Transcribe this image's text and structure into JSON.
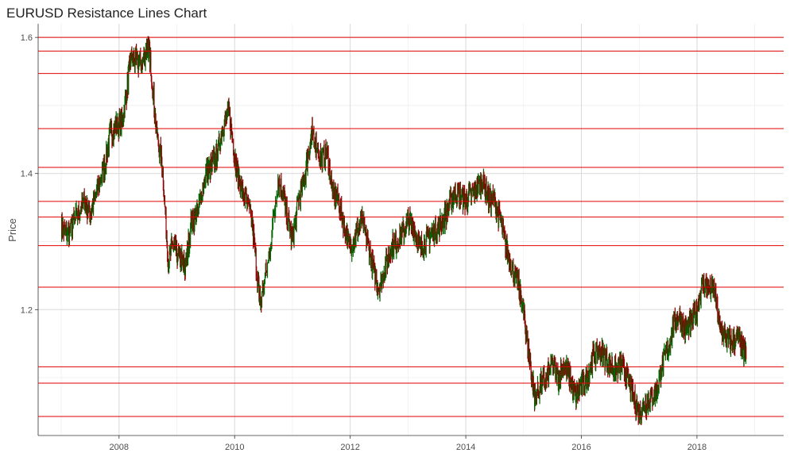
{
  "chart_data": {
    "type": "line",
    "title": "EURUSD Resistance Lines Chart",
    "xlabel": "",
    "ylabel": "Price",
    "x_range": [
      2006.6,
      2019.5
    ],
    "ylim": [
      1.015,
      1.62
    ],
    "x_ticks": [
      2008,
      2010,
      2012,
      2014,
      2016,
      2018
    ],
    "x_tick_labels": [
      "2008",
      "2010",
      "2012",
      "2014",
      "2016",
      "2018"
    ],
    "y_ticks": [
      1.2,
      1.4,
      1.6
    ],
    "y_tick_labels": [
      "1.2",
      "1.4",
      "1.6"
    ],
    "grid": true,
    "resistance_line_color": "#e00000",
    "up_color": "#006400",
    "down_color": "#8b0000",
    "resistance_lines": [
      1.6,
      1.58,
      1.547,
      1.466,
      1.409,
      1.359,
      1.336,
      1.294,
      1.233,
      1.116,
      1.092,
      1.043
    ],
    "price_series": {
      "name": "EURUSD",
      "x": [
        2007.0,
        2007.1,
        2007.25,
        2007.4,
        2007.5,
        2007.6,
        2007.75,
        2007.85,
        2007.95,
        2008.05,
        2008.15,
        2008.2,
        2008.3,
        2008.4,
        2008.5,
        2008.55,
        2008.65,
        2008.75,
        2008.85,
        2008.95,
        2009.0,
        2009.1,
        2009.15,
        2009.25,
        2009.35,
        2009.5,
        2009.6,
        2009.7,
        2009.8,
        2009.9,
        2010.0,
        2010.05,
        2010.15,
        2010.3,
        2010.4,
        2010.45,
        2010.6,
        2010.75,
        2010.85,
        2010.9,
        2011.0,
        2011.1,
        2011.2,
        2011.3,
        2011.35,
        2011.5,
        2011.6,
        2011.7,
        2011.8,
        2011.9,
        2012.0,
        2012.1,
        2012.2,
        2012.3,
        2012.4,
        2012.5,
        2012.6,
        2012.7,
        2012.8,
        2012.9,
        2013.0,
        2013.1,
        2013.2,
        2013.3,
        2013.4,
        2013.5,
        2013.6,
        2013.7,
        2013.8,
        2013.9,
        2014.0,
        2014.1,
        2014.2,
        2014.3,
        2014.4,
        2014.5,
        2014.6,
        2014.7,
        2014.8,
        2014.9,
        2015.0,
        2015.05,
        2015.15,
        2015.2,
        2015.3,
        2015.4,
        2015.5,
        2015.6,
        2015.7,
        2015.8,
        2015.9,
        2016.0,
        2016.1,
        2016.2,
        2016.3,
        2016.4,
        2016.5,
        2016.6,
        2016.7,
        2016.8,
        2016.9,
        2017.0,
        2017.1,
        2017.2,
        2017.3,
        2017.4,
        2017.5,
        2017.6,
        2017.7,
        2017.8,
        2017.9,
        2018.0,
        2018.1,
        2018.2,
        2018.3,
        2018.4,
        2018.5,
        2018.6,
        2018.7,
        2018.8,
        2018.85
      ],
      "y": [
        1.32,
        1.31,
        1.335,
        1.36,
        1.34,
        1.37,
        1.41,
        1.46,
        1.47,
        1.475,
        1.53,
        1.57,
        1.565,
        1.56,
        1.59,
        1.56,
        1.46,
        1.41,
        1.27,
        1.3,
        1.28,
        1.27,
        1.26,
        1.33,
        1.34,
        1.4,
        1.41,
        1.43,
        1.47,
        1.49,
        1.43,
        1.4,
        1.37,
        1.33,
        1.24,
        1.21,
        1.28,
        1.39,
        1.37,
        1.34,
        1.3,
        1.36,
        1.39,
        1.44,
        1.46,
        1.42,
        1.43,
        1.37,
        1.36,
        1.32,
        1.29,
        1.31,
        1.33,
        1.3,
        1.26,
        1.23,
        1.26,
        1.29,
        1.3,
        1.31,
        1.33,
        1.32,
        1.29,
        1.3,
        1.31,
        1.32,
        1.33,
        1.35,
        1.37,
        1.37,
        1.36,
        1.37,
        1.38,
        1.39,
        1.36,
        1.36,
        1.33,
        1.29,
        1.26,
        1.24,
        1.2,
        1.16,
        1.1,
        1.07,
        1.09,
        1.1,
        1.12,
        1.1,
        1.12,
        1.1,
        1.07,
        1.09,
        1.1,
        1.13,
        1.14,
        1.13,
        1.12,
        1.11,
        1.12,
        1.1,
        1.07,
        1.05,
        1.06,
        1.07,
        1.08,
        1.12,
        1.14,
        1.18,
        1.19,
        1.17,
        1.18,
        1.2,
        1.24,
        1.23,
        1.23,
        1.17,
        1.16,
        1.15,
        1.16,
        1.14,
        1.135
      ]
    }
  }
}
